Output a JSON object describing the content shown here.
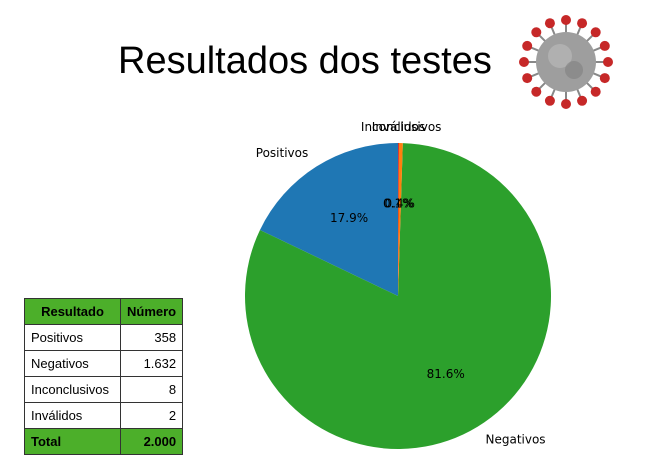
{
  "title": "Resultados dos testes",
  "icons": {
    "virus": "coronavirus-icon"
  },
  "chart_data": {
    "type": "pie",
    "title": "Resultados dos testes",
    "slices": [
      {
        "label": "Positivos",
        "value": 17.9,
        "pct_label": "17.9%",
        "color": "#1f77b4"
      },
      {
        "label": "Negativos",
        "value": 81.6,
        "pct_label": "81.6%",
        "color": "#2ca02c"
      },
      {
        "label": "Inconclusivos",
        "value": 0.4,
        "pct_label": "0.4%",
        "color": "#ff7f0e"
      },
      {
        "label": "Inválidos",
        "value": 0.1,
        "pct_label": "0.1%",
        "color": "#d62728"
      }
    ],
    "start_angle_deg": 90,
    "direction": "counterclockwise"
  },
  "table": {
    "headers": [
      "Resultado",
      "Número"
    ],
    "rows": [
      [
        "Positivos",
        "358"
      ],
      [
        "Negativos",
        "1.632"
      ],
      [
        "Inconclusivos",
        "8"
      ],
      [
        "Inválidos",
        "2"
      ]
    ],
    "total": [
      "Total",
      "2.000"
    ],
    "header_color": "#4caf2a"
  }
}
